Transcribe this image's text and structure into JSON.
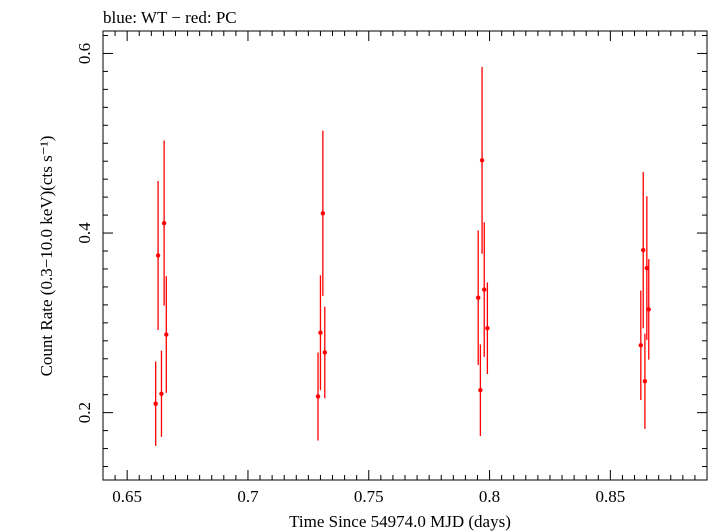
{
  "chart_data": {
    "type": "scatter",
    "title": "blue: WT − red: PC",
    "xlabel": "Time Since 54974.0 MJD (days)",
    "ylabel": "Count Rate (0.3−10.0 keV)(cts s⁻¹)",
    "xlim": [
      0.64,
      0.89
    ],
    "ylim": [
      0.125,
      0.625
    ],
    "x_ticks": [
      0.65,
      0.7,
      0.75,
      0.8,
      0.85
    ],
    "x_tick_labels": [
      "0.65",
      "0.7",
      "0.75",
      "0.8",
      "0.85"
    ],
    "y_ticks": [
      0.2,
      0.4,
      0.6
    ],
    "y_tick_labels": [
      "0.2",
      "0.4",
      "0.6"
    ],
    "grid": false,
    "series": [
      {
        "color": "#ff0000",
        "x": [
          0.6618,
          0.6628,
          0.6642,
          0.6653,
          0.6662,
          0.729,
          0.73,
          0.731,
          0.7318,
          0.7953,
          0.7962,
          0.7969,
          0.7978,
          0.7991,
          0.8626,
          0.8636,
          0.8643,
          0.8651,
          0.8659
        ],
        "y": [
          0.21,
          0.375,
          0.221,
          0.411,
          0.287,
          0.218,
          0.289,
          0.422,
          0.267,
          0.328,
          0.225,
          0.481,
          0.337,
          0.294,
          0.275,
          0.381,
          0.235,
          0.361,
          0.315
        ],
        "yerr": [
          0.047,
          0.083,
          0.048,
          0.092,
          0.065,
          0.049,
          0.064,
          0.092,
          0.051,
          0.075,
          0.051,
          0.104,
          0.075,
          0.051,
          0.061,
          0.087,
          0.053,
          0.08,
          0.056
        ]
      }
    ]
  }
}
